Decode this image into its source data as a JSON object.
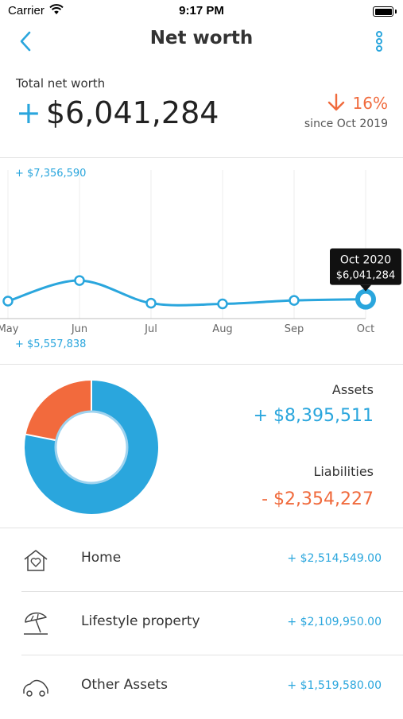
{
  "status_bar": {
    "carrier": "Carrier",
    "time": "9:17 PM"
  },
  "nav": {
    "title": "Net worth"
  },
  "summary": {
    "label": "Total net worth",
    "sign": "+",
    "value": "$6,041,284",
    "change": "16%",
    "since": "since Oct 2019"
  },
  "chart_data": {
    "type": "line",
    "categories": [
      "May",
      "Jun",
      "Jul",
      "Aug",
      "Sep",
      "Oct"
    ],
    "values": [
      6022000,
      6237000,
      6000000,
      5993000,
      6029000,
      6041284
    ],
    "ylim": [
      5557838,
      7356590
    ],
    "max_label": "+ $7,356,590",
    "min_label": "+ $5,557,838",
    "tooltip": {
      "title": "Oct 2020",
      "value": "$6,041,284"
    },
    "color": "#2aa6dd"
  },
  "breakdown": {
    "assets_label": "Assets",
    "assets_value": "+ $8,395,511",
    "liabilities_label": "Liabilities",
    "liabilities_value": "- $2,354,227",
    "donut": {
      "assets": 8395511,
      "liabilities": 2354227,
      "assets_color": "#2aa6dd",
      "liabilities_color": "#f26a3d"
    }
  },
  "items": [
    {
      "label": "Home",
      "value": "+ $2,514,549.00",
      "icon": "home-heart-icon"
    },
    {
      "label": "Lifestyle property",
      "value": "+ $2,109,950.00",
      "icon": "beach-umbrella-icon"
    },
    {
      "label": "Other Assets",
      "value": "+ $1,519,580.00",
      "icon": "vehicle-icon"
    }
  ]
}
